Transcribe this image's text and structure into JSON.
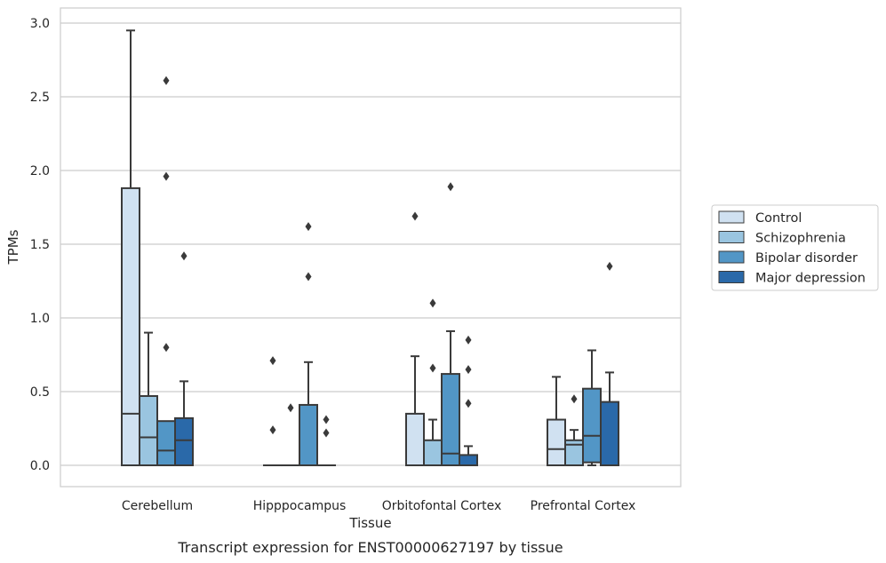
{
  "caption": "Transcript expression for ENST00000627197 by tissue",
  "chart_data": {
    "type": "boxplot",
    "xlabel": "Tissue",
    "ylabel": "TPMs",
    "ylim": [
      -0.14,
      3.1
    ],
    "yticks": [
      "0.0",
      "0.5",
      "1.0",
      "1.5",
      "2.0",
      "2.5",
      "3.0"
    ],
    "ytick_values": [
      0,
      0.5,
      1.0,
      1.5,
      2.0,
      2.5,
      3.0
    ],
    "grid": "horizontal",
    "legend_position": "right",
    "categories": [
      "Cerebellum",
      "Hipppocampus",
      "Orbitofontal Cortex",
      "Prefrontal Cortex"
    ],
    "series": [
      {
        "name": "Control",
        "color": "#d0e1f1",
        "boxes": [
          {
            "whislo": 0,
            "q1": 0,
            "med": 0.35,
            "q3": 1.88,
            "whishi": 2.95,
            "fliers": []
          },
          {
            "whislo": 0,
            "q1": 0,
            "med": 0,
            "q3": 0,
            "whishi": 0,
            "fliers": [
              0.71,
              0.24
            ]
          },
          {
            "whislo": 0,
            "q1": 0,
            "med": 0,
            "q3": 0.35,
            "whishi": 0.74,
            "fliers": [
              1.69
            ]
          },
          {
            "whislo": 0,
            "q1": 0,
            "med": 0.11,
            "q3": 0.31,
            "whishi": 0.6,
            "fliers": []
          }
        ]
      },
      {
        "name": "Schizophrenia",
        "color": "#9ac5e0",
        "boxes": [
          {
            "whislo": 0,
            "q1": 0,
            "med": 0.19,
            "q3": 0.47,
            "whishi": 0.9,
            "fliers": []
          },
          {
            "whislo": 0,
            "q1": 0,
            "med": 0,
            "q3": 0,
            "whishi": 0,
            "fliers": [
              0.39
            ]
          },
          {
            "whislo": 0,
            "q1": 0,
            "med": 0,
            "q3": 0.17,
            "whishi": 0.31,
            "fliers": [
              1.1,
              0.66
            ]
          },
          {
            "whislo": 0,
            "q1": 0,
            "med": 0.14,
            "q3": 0.17,
            "whishi": 0.24,
            "fliers": [
              0.45
            ]
          }
        ]
      },
      {
        "name": "Bipolar disorder",
        "color": "#5296c6",
        "boxes": [
          {
            "whislo": 0,
            "q1": 0,
            "med": 0.1,
            "q3": 0.3,
            "whishi": 0.3,
            "fliers": [
              2.61,
              1.96,
              0.8
            ]
          },
          {
            "whislo": 0,
            "q1": 0,
            "med": 0,
            "q3": 0.41,
            "whishi": 0.7,
            "fliers": [
              1.62,
              1.28
            ]
          },
          {
            "whislo": 0,
            "q1": 0,
            "med": 0.08,
            "q3": 0.62,
            "whishi": 0.91,
            "fliers": [
              1.89
            ]
          },
          {
            "whislo": 0,
            "q1": 0.02,
            "med": 0.2,
            "q3": 0.52,
            "whishi": 0.78,
            "fliers": []
          }
        ]
      },
      {
        "name": "Major depression",
        "color": "#2a69a9",
        "boxes": [
          {
            "whislo": 0,
            "q1": 0,
            "med": 0.17,
            "q3": 0.32,
            "whishi": 0.57,
            "fliers": [
              1.42
            ]
          },
          {
            "whislo": 0,
            "q1": 0,
            "med": 0,
            "q3": 0,
            "whishi": 0,
            "fliers": [
              0.31,
              0.22
            ]
          },
          {
            "whislo": 0,
            "q1": 0,
            "med": 0,
            "q3": 0.07,
            "whishi": 0.13,
            "fliers": [
              0.85,
              0.65,
              0.42
            ]
          },
          {
            "whislo": 0,
            "q1": 0,
            "med": 0,
            "q3": 0.43,
            "whishi": 0.63,
            "fliers": [
              1.35
            ]
          }
        ]
      }
    ]
  }
}
